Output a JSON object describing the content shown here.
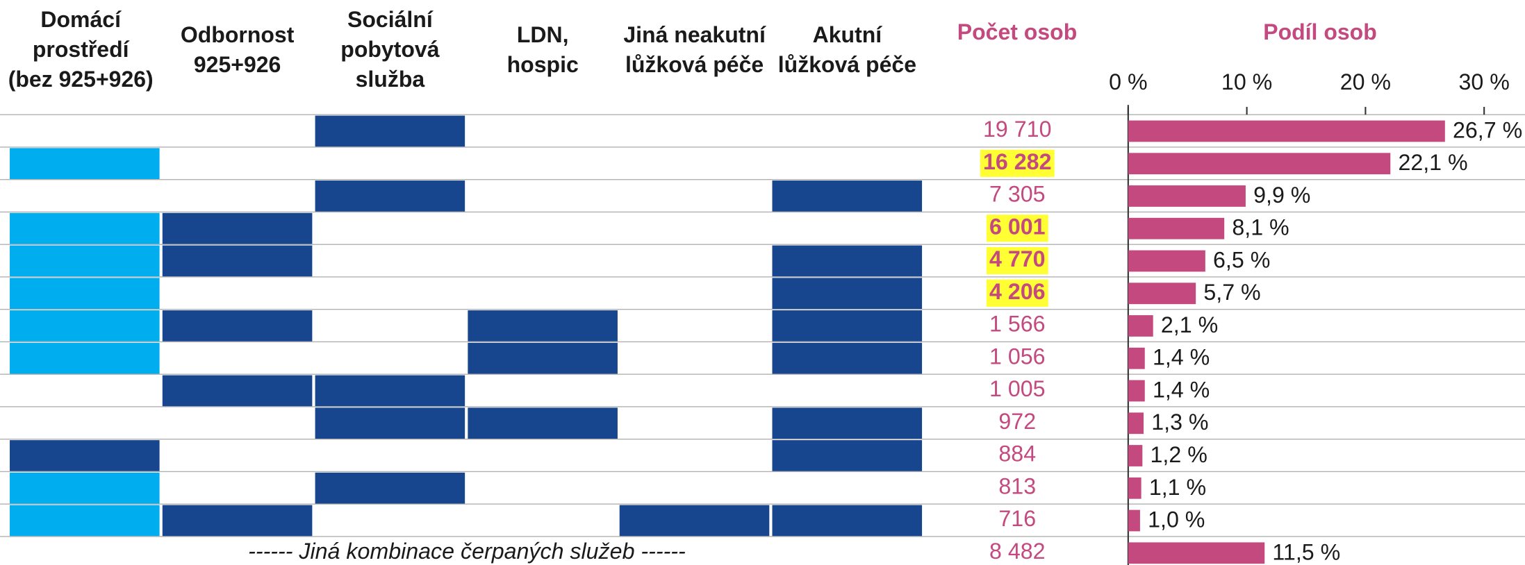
{
  "columns": [
    "Domácí\nprostředí\n(bez 925+926)",
    "Odbornost\n925+926",
    "Sociální\npobytová\nslužba",
    "LDN,\nhospic",
    "Jiná neakutní\nlůžková péče",
    "Akutní\nlůžková péče"
  ],
  "count_header": "Počet osob",
  "rows": [
    {
      "cells": [
        null,
        null,
        "#17468f",
        null,
        null,
        null
      ],
      "count": "19 710",
      "highlight": false
    },
    {
      "cells": [
        "#00adee",
        null,
        null,
        null,
        null,
        null
      ],
      "count": "16 282",
      "highlight": true
    },
    {
      "cells": [
        null,
        null,
        "#17468f",
        null,
        null,
        "#17468f"
      ],
      "count": "7 305",
      "highlight": false
    },
    {
      "cells": [
        "#00adee",
        "#17468f",
        null,
        null,
        null,
        null
      ],
      "count": "6 001",
      "highlight": true
    },
    {
      "cells": [
        "#00adee",
        "#17468f",
        null,
        null,
        null,
        "#17468f"
      ],
      "count": "4 770",
      "highlight": true
    },
    {
      "cells": [
        "#00adee",
        null,
        null,
        null,
        null,
        "#17468f"
      ],
      "count": "4 206",
      "highlight": true
    },
    {
      "cells": [
        "#00adee",
        "#17468f",
        null,
        "#17468f",
        null,
        "#17468f"
      ],
      "count": "1 566",
      "highlight": false
    },
    {
      "cells": [
        "#00adee",
        null,
        null,
        "#17468f",
        null,
        "#17468f"
      ],
      "count": "1 056",
      "highlight": false
    },
    {
      "cells": [
        null,
        "#17468f",
        "#17468f",
        null,
        null,
        null
      ],
      "count": "1 005",
      "highlight": false
    },
    {
      "cells": [
        null,
        null,
        "#17468f",
        "#17468f",
        null,
        "#17468f"
      ],
      "count": "972",
      "highlight": false
    },
    {
      "cells": [
        "#17468f",
        null,
        null,
        null,
        null,
        "#17468f"
      ],
      "count": "884",
      "highlight": false
    },
    {
      "cells": [
        "#00adee",
        null,
        "#17468f",
        null,
        null,
        null
      ],
      "count": "813",
      "highlight": false
    },
    {
      "cells": [
        "#00adee",
        "#17468f",
        null,
        null,
        "#17468f",
        "#17468f"
      ],
      "count": "716",
      "highlight": false
    }
  ],
  "other": {
    "label": "------ Jiná kombinace čerpaných služeb ------",
    "count": "8 482",
    "highlight": false
  },
  "chart_data": {
    "type": "bar",
    "orientation": "horizontal",
    "title": "Podíl osob",
    "color": "#c4497f",
    "xlim": [
      0,
      30
    ],
    "xticks": [
      {
        "value": 0,
        "label": "0 %"
      },
      {
        "value": 10,
        "label": "10 %"
      },
      {
        "value": 20,
        "label": "20 %"
      },
      {
        "value": 30,
        "label": "30 %"
      }
    ],
    "values": [
      26.7,
      22.1,
      9.9,
      8.1,
      6.5,
      5.7,
      2.1,
      1.4,
      1.4,
      1.3,
      1.2,
      1.1,
      1.0,
      11.5
    ],
    "value_labels": [
      "26,7 %",
      "22,1 %",
      "9,9 %",
      "8,1 %",
      "6,5 %",
      "5,7 %",
      "2,1 %",
      "1,4 %",
      "1,4 %",
      "1,3 %",
      "1,2 %",
      "1,1 %",
      "1,0 %",
      "11,5 %"
    ]
  }
}
